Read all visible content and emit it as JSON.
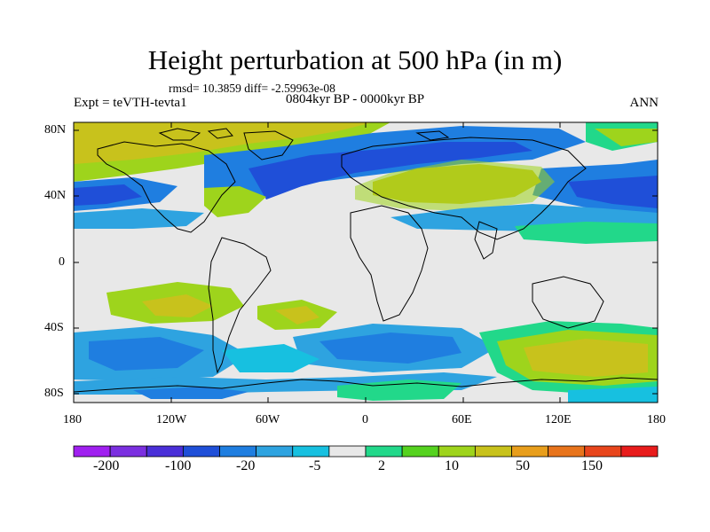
{
  "title": "Height perturbation at 500 hPa (in m)",
  "stats": "rmsd= 10.3859 diff= -2.59963e-08",
  "experiment": "Expt = teVTH-tevta1",
  "period": "0804kyr BP - 0000kyr BP",
  "season": "ANN",
  "lat_labels": [
    "80N",
    "40N",
    "0",
    "40S",
    "80S"
  ],
  "lon_labels": [
    "180",
    "120W",
    "60W",
    "0",
    "60E",
    "120E",
    "180"
  ],
  "colorbar": {
    "labels": [
      "-200",
      "-100",
      "-20",
      "-5",
      "2",
      "10",
      "50",
      "150"
    ],
    "colors": [
      "#a020f0",
      "#7b2fe0",
      "#4a2fd8",
      "#1f4fd8",
      "#1f7ee0",
      "#2ea3e0",
      "#17c0e0",
      "#e8e8e8",
      "#22d88a",
      "#55d21f",
      "#9ed41c",
      "#c8c21c",
      "#e89e1c",
      "#e8741c",
      "#e8451c",
      "#e81c1c"
    ]
  },
  "palette": {
    "land_outline": "#000000",
    "neutral": "#e8e8e8"
  }
}
